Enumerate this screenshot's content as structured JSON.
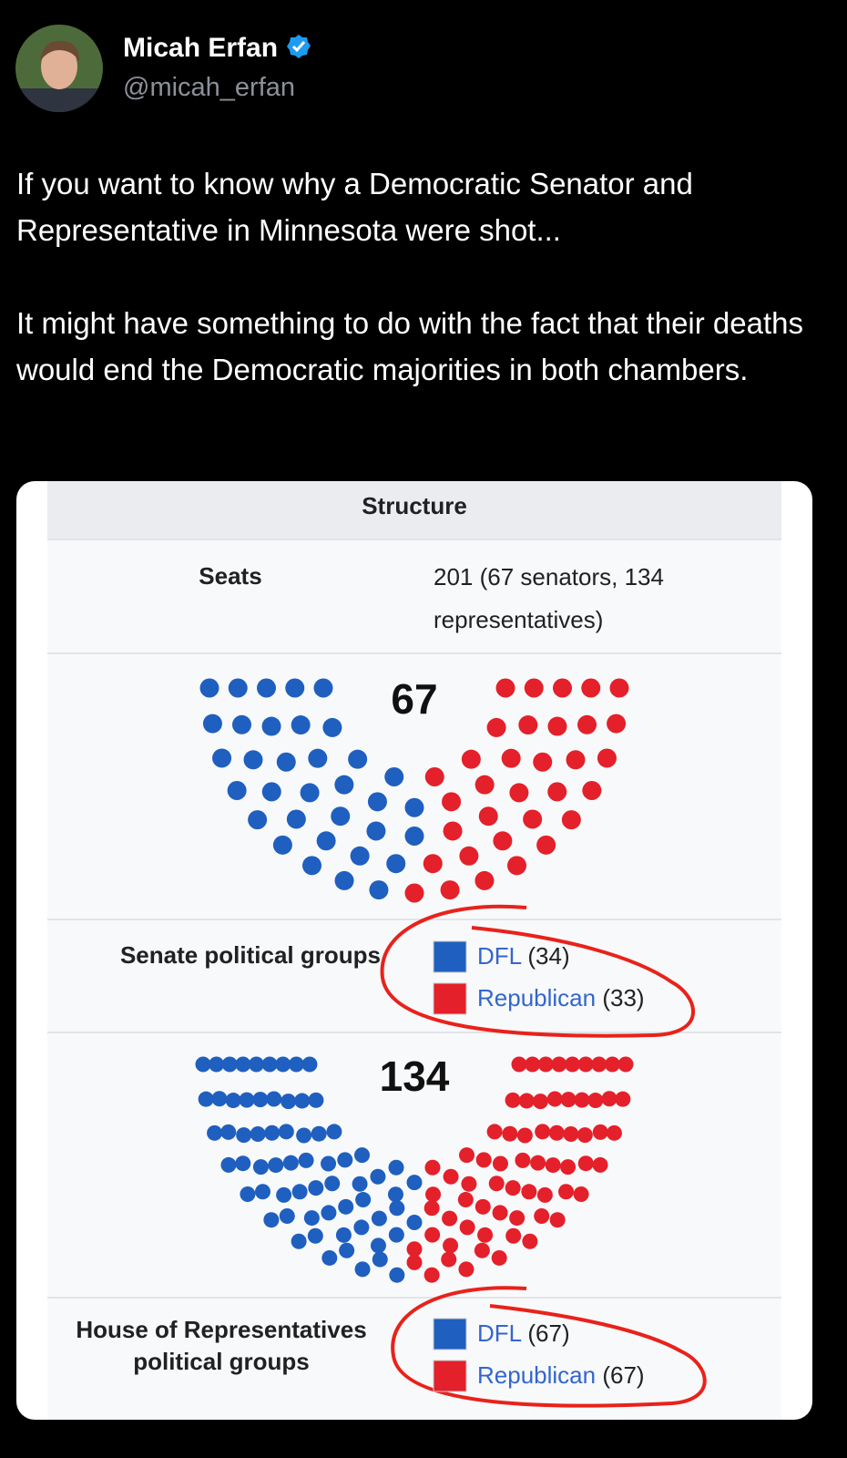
{
  "post": {
    "author": "Micah Erfan",
    "handle": "@micah_erfan",
    "paragraphs": [
      "If you want to know why a Democratic Senator and Representative in Minnesota were shot...",
      "It might have something to do with the fact that their deaths would end the Democratic majorities in both chambers."
    ]
  },
  "infobox": {
    "header": "Structure",
    "seats_label": "Seats",
    "seats_value": "201 (67 senators, 134 representatives)",
    "senate": {
      "total": 67,
      "groups_label": "Senate political groups",
      "parties": [
        {
          "name": "DFL",
          "color": "#1f5fbf",
          "seats": {
            "value": 34,
            "label": "(34)"
          }
        },
        {
          "name": "Republican",
          "color": "#e4202a",
          "seats": {
            "value": 33,
            "label": "(33)"
          }
        }
      ]
    },
    "house": {
      "total": 134,
      "groups_label": "House of Representatives political groups",
      "parties": [
        {
          "name": "DFL",
          "color": "#1f5fbf",
          "seats": {
            "value": 67,
            "label": "(67)"
          }
        },
        {
          "name": "Republican",
          "color": "#e4202a",
          "seats": {
            "value": 67,
            "label": "(67)"
          }
        }
      ]
    }
  }
}
